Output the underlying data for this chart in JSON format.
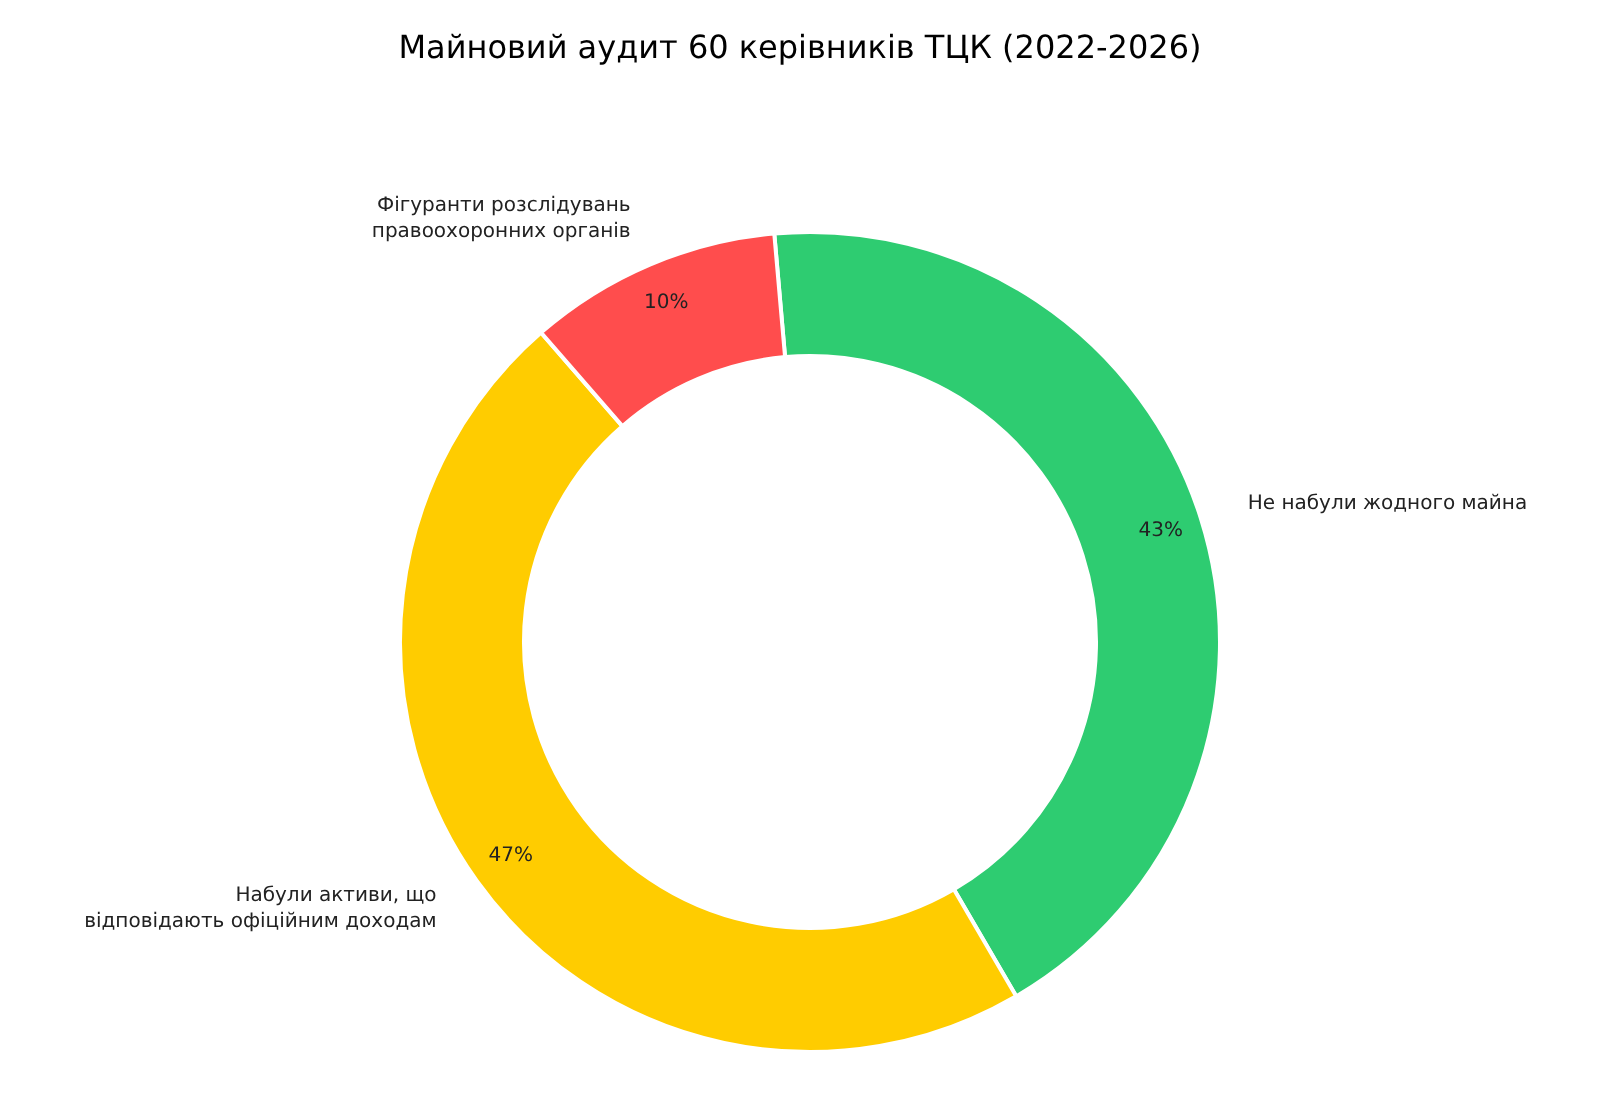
{
  "chart_data": {
    "type": "donut",
    "title": "Майновий аудит 60 керівників ТЦК (2022-2026)",
    "categories": [
      "Не набули жодного майна",
      "Набули активи, що відповідають офіційним доходам",
      "Фігуранти розслідувань правоохоронних органів"
    ],
    "values": [
      43,
      47,
      10
    ],
    "colors": [
      "#2ecc71",
      "#ffcc00",
      "#ff4d4d"
    ],
    "value_labels": [
      "43%",
      "47%",
      "10%"
    ],
    "legend": false
  }
}
